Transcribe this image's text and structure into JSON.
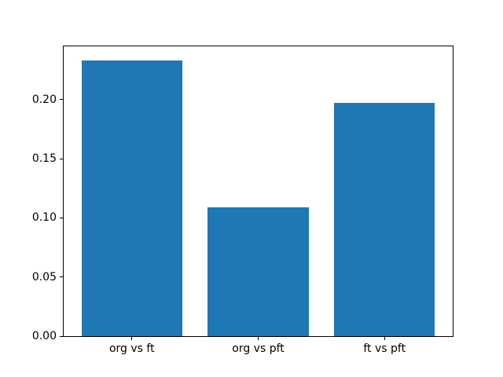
{
  "chart_data": {
    "type": "bar",
    "title": "",
    "xlabel": "",
    "ylabel": "",
    "categories": [
      "org vs ft",
      "org vs pft",
      "ft vs pft"
    ],
    "values": [
      0.233,
      0.109,
      0.197
    ],
    "yticks": [
      0.0,
      0.05,
      0.1,
      0.15,
      0.2
    ],
    "ytick_labels": [
      "0.00",
      "0.05",
      "0.10",
      "0.15",
      "0.20"
    ],
    "ylim": [
      0,
      0.245
    ],
    "xlim": [
      -0.54,
      2.54
    ],
    "bar_width_data_units": 0.8,
    "bar_color": "#1f77b4",
    "axes_color": "#000000",
    "background_color": "#ffffff",
    "grid": false,
    "legend": null
  }
}
